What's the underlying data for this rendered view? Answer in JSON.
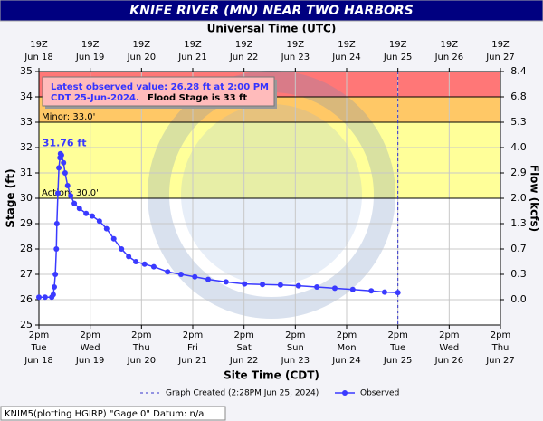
{
  "chart_data": {
    "type": "line",
    "title": "KNIFE RIVER (MN) NEAR TWO HARBORS",
    "top_axis_title": "Universal Time (UTC)",
    "x_axis_title": "Site Time (CDT)",
    "y_axis_title": "Stage (ft)",
    "y2_axis_title": "Flow (kcfs)",
    "xlim": [
      0,
      9
    ],
    "xticks": [
      {
        "value": 0,
        "label": [
          "2pm",
          "Tue",
          "Jun 18"
        ]
      },
      {
        "value": 1,
        "label": [
          "2pm",
          "Wed",
          "Jun 19"
        ]
      },
      {
        "value": 2,
        "label": [
          "2pm",
          "Thu",
          "Jun 20"
        ]
      },
      {
        "value": 3,
        "label": [
          "2pm",
          "Fri",
          "Jun 21"
        ]
      },
      {
        "value": 4,
        "label": [
          "2pm",
          "Sat",
          "Jun 22"
        ]
      },
      {
        "value": 5,
        "label": [
          "2pm",
          "Sun",
          "Jun 23"
        ]
      },
      {
        "value": 6,
        "label": [
          "2pm",
          "Mon",
          "Jun 24"
        ]
      },
      {
        "value": 7,
        "label": [
          "2pm",
          "Tue",
          "Jun 25"
        ]
      },
      {
        "value": 8,
        "label": [
          "2pm",
          "Wed",
          "Jun 26"
        ]
      },
      {
        "value": 9,
        "label": [
          "2pm",
          "Thu",
          "Jun 27"
        ]
      }
    ],
    "top_xticks": [
      {
        "value": 0,
        "label": [
          "19Z",
          "Jun 18"
        ]
      },
      {
        "value": 1,
        "label": [
          "19Z",
          "Jun 19"
        ]
      },
      {
        "value": 2,
        "label": [
          "19Z",
          "Jun 20"
        ]
      },
      {
        "value": 3,
        "label": [
          "19Z",
          "Jun 21"
        ]
      },
      {
        "value": 4,
        "label": [
          "19Z",
          "Jun 22"
        ]
      },
      {
        "value": 5,
        "label": [
          "19Z",
          "Jun 23"
        ]
      },
      {
        "value": 6,
        "label": [
          "19Z",
          "Jun 24"
        ]
      },
      {
        "value": 7,
        "label": [
          "19Z",
          "Jun 25"
        ]
      },
      {
        "value": 8,
        "label": [
          "19Z",
          "Jun 26"
        ]
      },
      {
        "value": 9,
        "label": [
          "19Z",
          "Jun 27"
        ]
      }
    ],
    "ylim": [
      25,
      35
    ],
    "yticks": [
      25,
      26,
      27,
      28,
      29,
      30,
      31,
      32,
      33,
      34,
      35
    ],
    "y2ticks": [
      {
        "value": 0,
        "label": "0.0",
        "stage": 26
      },
      {
        "value": 0.3,
        "label": "0.3",
        "stage": 27
      },
      {
        "value": 0.7,
        "label": "0.7",
        "stage": 28
      },
      {
        "value": 1.3,
        "label": "1.3",
        "stage": 29
      },
      {
        "value": 2,
        "label": "2.0",
        "stage": 30
      },
      {
        "value": 2.9,
        "label": "2.9",
        "stage": 31
      },
      {
        "value": 4,
        "label": "4.0",
        "stage": 32
      },
      {
        "value": 5.3,
        "label": "5.3",
        "stage": 33
      },
      {
        "value": 6.8,
        "label": "6.8",
        "stage": 34
      },
      {
        "value": 8.4,
        "label": "8.4",
        "stage": 35
      }
    ],
    "grid": true,
    "flood_categories": [
      {
        "value": 30,
        "label": "Action: 30.0'",
        "color": "#ffff99"
      },
      {
        "value": 33,
        "label": "Minor: 33.0'",
        "color": "#ffc866"
      },
      {
        "value": 34,
        "label": null,
        "color": "#ff7777"
      }
    ],
    "annotation": {
      "lines": [
        "Latest observed value: 26.28 ft at 2:00 PM",
        "CDT 25-Jun-2024."
      ],
      "note": "Flood Stage is 33 ft"
    },
    "peak_label": {
      "x": 0.42,
      "value": 31.76,
      "label": "31.76 ft"
    },
    "graph_created": {
      "x": 7,
      "label": "Graph Created (2:28PM Jun 25, 2024)",
      "color": "#3333cc"
    },
    "footer": "KNIM5(plotting HGIRP) \"Gage 0\" Datum: n/a",
    "series": [
      {
        "name": "Observed",
        "color": "#3a3aff",
        "x": [
          0,
          0.12,
          0.25,
          0.28,
          0.3,
          0.32,
          0.34,
          0.35,
          0.37,
          0.39,
          0.41,
          0.42,
          0.44,
          0.48,
          0.51,
          0.56,
          0.62,
          0.69,
          0.79,
          0.92,
          1.04,
          1.18,
          1.32,
          1.46,
          1.61,
          1.75,
          1.89,
          2.06,
          2.24,
          2.51,
          2.77,
          3.04,
          3.3,
          3.65,
          4.01,
          4.36,
          4.71,
          5.06,
          5.42,
          5.77,
          6.12,
          6.48,
          6.74,
          7.0
        ],
        "values": [
          26.1,
          26.1,
          26.1,
          26.2,
          26.5,
          27.0,
          28.0,
          29.0,
          30.2,
          31.2,
          31.6,
          31.76,
          31.7,
          31.4,
          31.0,
          30.5,
          30.1,
          29.8,
          29.6,
          29.4,
          29.3,
          29.1,
          28.8,
          28.4,
          28.0,
          27.7,
          27.5,
          27.4,
          27.3,
          27.1,
          27.0,
          26.9,
          26.8,
          26.7,
          26.62,
          26.6,
          26.58,
          26.55,
          26.5,
          26.45,
          26.4,
          26.35,
          26.3,
          26.28
        ]
      }
    ]
  }
}
